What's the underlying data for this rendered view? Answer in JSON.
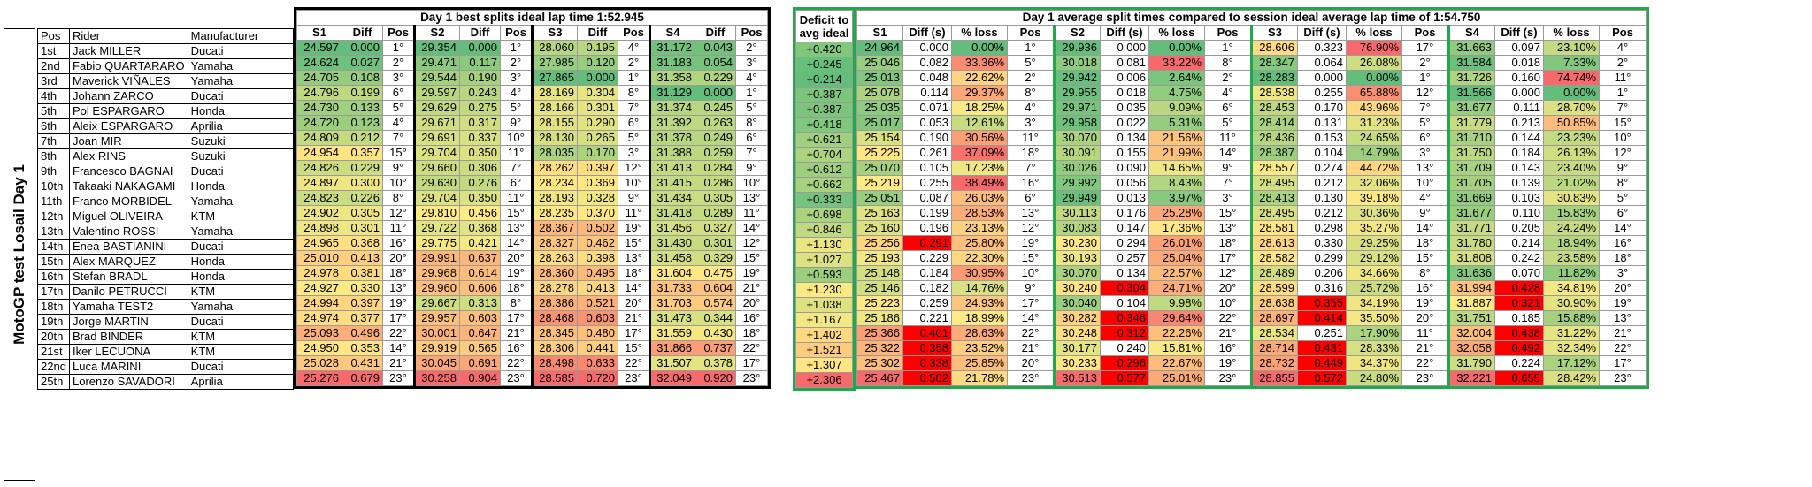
{
  "vertical_title": "MotoGP test Losail Day 1",
  "riders_header": {
    "pos": "Pos",
    "rider": "Rider",
    "manufacturer": "Manufacturer"
  },
  "riders": [
    {
      "pos": "1st",
      "name": "Jack MILLER",
      "mfr": "Ducati"
    },
    {
      "pos": "2nd",
      "name": "Fabio QUARTARARO",
      "mfr": "Yamaha"
    },
    {
      "pos": "3rd",
      "name": "Maverick VIÑALES",
      "mfr": "Yamaha"
    },
    {
      "pos": "4th",
      "name": "Johann ZARCO",
      "mfr": "Ducati"
    },
    {
      "pos": "5th",
      "name": "Pol ESPARGARO",
      "mfr": "Honda"
    },
    {
      "pos": "6th",
      "name": "Aleix ESPARGARO",
      "mfr": "Aprilia"
    },
    {
      "pos": "7th",
      "name": "Joan MIR",
      "mfr": "Suzuki"
    },
    {
      "pos": "8th",
      "name": "Alex RINS",
      "mfr": "Suzuki"
    },
    {
      "pos": "9th",
      "name": "Francesco BAGNAI",
      "mfr": "Ducati"
    },
    {
      "pos": "10th",
      "name": "Takaaki NAKAGAMI",
      "mfr": "Honda"
    },
    {
      "pos": "11th",
      "name": "Franco MORBIDEL",
      "mfr": "Yamaha"
    },
    {
      "pos": "12th",
      "name": "Miguel OLIVEIRA",
      "mfr": "KTM"
    },
    {
      "pos": "13th",
      "name": "Valentino ROSSI",
      "mfr": "Yamaha"
    },
    {
      "pos": "14th",
      "name": "Enea BASTIANINI",
      "mfr": "Ducati"
    },
    {
      "pos": "15th",
      "name": "Alex MARQUEZ",
      "mfr": "Honda"
    },
    {
      "pos": "16th",
      "name": "Stefan BRADL",
      "mfr": "Honda"
    },
    {
      "pos": "17th",
      "name": "Danilo PETRUCCI",
      "mfr": "KTM"
    },
    {
      "pos": "18th",
      "name": "Yamaha TEST2",
      "mfr": "Yamaha"
    },
    {
      "pos": "19th",
      "name": "Jorge MARTIN",
      "mfr": "Ducati"
    },
    {
      "pos": "20th",
      "name": "Brad BINDER",
      "mfr": "KTM"
    },
    {
      "pos": "21st",
      "name": "Iker LECUONA",
      "mfr": "KTM"
    },
    {
      "pos": "22nd",
      "name": "Luca MARINI",
      "mfr": "Ducati"
    },
    {
      "pos": "25th",
      "name": "Lorenzo SAVADORI",
      "mfr": "Aprilia"
    }
  ],
  "best_splits": {
    "title": "Day 1 best splits ideal lap time   1:52.945",
    "headers": [
      "S1",
      "Diff",
      "Pos",
      "S2",
      "Diff",
      "Pos",
      "S3",
      "Diff",
      "Pos",
      "S4",
      "Diff",
      "Pos"
    ],
    "rows": [
      [
        "24.597",
        "0.000",
        "1°",
        "29.354",
        "0.000",
        "1°",
        "28.060",
        "0.195",
        "4°",
        "31.172",
        "0.043",
        "2°"
      ],
      [
        "24.624",
        "0.027",
        "2°",
        "29.471",
        "0.117",
        "2°",
        "27.985",
        "0.120",
        "2°",
        "31.183",
        "0.054",
        "3°"
      ],
      [
        "24.705",
        "0.108",
        "3°",
        "29.544",
        "0.190",
        "3°",
        "27.865",
        "0.000",
        "1°",
        "31.358",
        "0.229",
        "4°"
      ],
      [
        "24.796",
        "0.199",
        "6°",
        "29.597",
        "0.243",
        "4°",
        "28.169",
        "0.304",
        "8°",
        "31.129",
        "0.000",
        "1°"
      ],
      [
        "24.730",
        "0.133",
        "5°",
        "29.629",
        "0.275",
        "5°",
        "28.166",
        "0.301",
        "7°",
        "31.374",
        "0.245",
        "5°"
      ],
      [
        "24.720",
        "0.123",
        "4°",
        "29.671",
        "0.317",
        "9°",
        "28.155",
        "0.290",
        "6°",
        "31.392",
        "0.263",
        "8°"
      ],
      [
        "24.809",
        "0.212",
        "7°",
        "29.691",
        "0.337",
        "10°",
        "28.130",
        "0.265",
        "5°",
        "31.378",
        "0.249",
        "6°"
      ],
      [
        "24.954",
        "0.357",
        "15°",
        "29.704",
        "0.350",
        "11°",
        "28.035",
        "0.170",
        "3°",
        "31.388",
        "0.259",
        "7°"
      ],
      [
        "24.826",
        "0.229",
        "9°",
        "29.660",
        "0.306",
        "7°",
        "28.262",
        "0.397",
        "12°",
        "31.413",
        "0.284",
        "9°"
      ],
      [
        "24.897",
        "0.300",
        "10°",
        "29.630",
        "0.276",
        "6°",
        "28.234",
        "0.369",
        "10°",
        "31.415",
        "0.286",
        "10°"
      ],
      [
        "24.823",
        "0.226",
        "8°",
        "29.704",
        "0.350",
        "11°",
        "28.193",
        "0.328",
        "9°",
        "31.434",
        "0.305",
        "13°"
      ],
      [
        "24.902",
        "0.305",
        "12°",
        "29.810",
        "0.456",
        "15°",
        "28.235",
        "0.370",
        "11°",
        "31.418",
        "0.289",
        "11°"
      ],
      [
        "24.898",
        "0.301",
        "11°",
        "29.722",
        "0.368",
        "13°",
        "28.367",
        "0.502",
        "19°",
        "31.456",
        "0.327",
        "14°"
      ],
      [
        "24.965",
        "0.368",
        "16°",
        "29.775",
        "0.421",
        "14°",
        "28.327",
        "0.462",
        "15°",
        "31.430",
        "0.301",
        "12°"
      ],
      [
        "25.010",
        "0.413",
        "20°",
        "29.991",
        "0.637",
        "20°",
        "28.263",
        "0.398",
        "13°",
        "31.458",
        "0.329",
        "15°"
      ],
      [
        "24.978",
        "0.381",
        "18°",
        "29.968",
        "0.614",
        "19°",
        "28.360",
        "0.495",
        "18°",
        "31.604",
        "0.475",
        "19°"
      ],
      [
        "24.927",
        "0.330",
        "13°",
        "29.960",
        "0.606",
        "18°",
        "28.278",
        "0.413",
        "14°",
        "31.733",
        "0.604",
        "21°"
      ],
      [
        "24.994",
        "0.397",
        "19°",
        "29.667",
        "0.313",
        "8°",
        "28.386",
        "0.521",
        "20°",
        "31.703",
        "0.574",
        "20°"
      ],
      [
        "24.974",
        "0.377",
        "17°",
        "29.957",
        "0.603",
        "17°",
        "28.468",
        "0.603",
        "21°",
        "31.473",
        "0.344",
        "16°"
      ],
      [
        "25.093",
        "0.496",
        "22°",
        "30.001",
        "0.647",
        "21°",
        "28.345",
        "0.480",
        "17°",
        "31.559",
        "0.430",
        "18°"
      ],
      [
        "24.950",
        "0.353",
        "14°",
        "29.919",
        "0.565",
        "16°",
        "28.306",
        "0.441",
        "15°",
        "31.866",
        "0.737",
        "22°"
      ],
      [
        "25.028",
        "0.431",
        "21°",
        "30.045",
        "0.691",
        "22°",
        "28.498",
        "0.633",
        "22°",
        "31.507",
        "0.378",
        "17°"
      ],
      [
        "25.276",
        "0.679",
        "23°",
        "30.258",
        "0.904",
        "23°",
        "28.585",
        "0.720",
        "23°",
        "32.049",
        "0.920",
        "23°"
      ]
    ]
  },
  "deficit": {
    "header": "Deficit to avg ideal",
    "values": [
      "+0.420",
      "+0.245",
      "+0.214",
      "+0.387",
      "+0.387",
      "+0.418",
      "+0.621",
      "+0.704",
      "+0.612",
      "+0.662",
      "+0.333",
      "+0.698",
      "+0.846",
      "+1.130",
      "+1.027",
      "+0.593",
      "+1.230",
      "+1.038",
      "+1.167",
      "+1.402",
      "+1.521",
      "+1.307",
      "+2.306"
    ]
  },
  "avg_splits": {
    "title": "Day 1 average split times compared to session ideal average lap time of   1:54.750",
    "headers": [
      "S1",
      "Diff (s)",
      "% loss",
      "Pos",
      "S2",
      "Diff (s)",
      "% loss",
      "Pos",
      "S3",
      "Diff (s)",
      "% loss",
      "Pos",
      "S4",
      "Diff (s)",
      "% loss",
      "Pos"
    ],
    "rows": [
      [
        "24.964",
        "0.000",
        "0.00%",
        "1°",
        "29.936",
        "0.000",
        "0.00%",
        "1°",
        "28.606",
        "0.323",
        "76.90%",
        "17°",
        "31.663",
        "0.097",
        "23.10%",
        "4°"
      ],
      [
        "25.046",
        "0.082",
        "33.36%",
        "5°",
        "30.018",
        "0.081",
        "33.22%",
        "8°",
        "28.347",
        "0.064",
        "26.08%",
        "2°",
        "31.584",
        "0.018",
        "7.33%",
        "2°"
      ],
      [
        "25.013",
        "0.048",
        "22.62%",
        "2°",
        "29.942",
        "0.006",
        "2.64%",
        "2°",
        "28.283",
        "0.000",
        "0.00%",
        "1°",
        "31.726",
        "0.160",
        "74.74%",
        "11°"
      ],
      [
        "25.078",
        "0.114",
        "29.37%",
        "8°",
        "29.955",
        "0.018",
        "4.75%",
        "4°",
        "28.538",
        "0.255",
        "65.88%",
        "12°",
        "31.566",
        "0.000",
        "0.00%",
        "1°"
      ],
      [
        "25.035",
        "0.071",
        "18.25%",
        "4°",
        "29.971",
        "0.035",
        "9.09%",
        "6°",
        "28.453",
        "0.170",
        "43.96%",
        "7°",
        "31.677",
        "0.111",
        "28.70%",
        "7°"
      ],
      [
        "25.017",
        "0.053",
        "12.61%",
        "3°",
        "29.958",
        "0.022",
        "5.31%",
        "5°",
        "28.414",
        "0.131",
        "31.23%",
        "5°",
        "31.779",
        "0.213",
        "50.85%",
        "15°"
      ],
      [
        "25.154",
        "0.190",
        "30.56%",
        "11°",
        "30.070",
        "0.134",
        "21.56%",
        "11°",
        "28.436",
        "0.153",
        "24.65%",
        "6°",
        "31.710",
        "0.144",
        "23.23%",
        "10°"
      ],
      [
        "25.225",
        "0.261",
        "37.09%",
        "18°",
        "30.091",
        "0.155",
        "21.99%",
        "14°",
        "28.387",
        "0.104",
        "14.79%",
        "3°",
        "31.750",
        "0.184",
        "26.13%",
        "12°"
      ],
      [
        "25.070",
        "0.105",
        "17.23%",
        "7°",
        "30.026",
        "0.090",
        "14.65%",
        "9°",
        "28.557",
        "0.274",
        "44.72%",
        "13°",
        "31.709",
        "0.143",
        "23.40%",
        "9°"
      ],
      [
        "25.219",
        "0.255",
        "38.49%",
        "16°",
        "29.992",
        "0.056",
        "8.43%",
        "7°",
        "28.495",
        "0.212",
        "32.06%",
        "10°",
        "31.705",
        "0.139",
        "21.02%",
        "8°"
      ],
      [
        "25.051",
        "0.087",
        "26.03%",
        "6°",
        "29.949",
        "0.013",
        "3.97%",
        "3°",
        "28.413",
        "0.130",
        "39.18%",
        "4°",
        "31.669",
        "0.103",
        "30.83%",
        "5°"
      ],
      [
        "25.163",
        "0.199",
        "28.53%",
        "13°",
        "30.113",
        "0.176",
        "25.28%",
        "15°",
        "28.495",
        "0.212",
        "30.36%",
        "9°",
        "31.677",
        "0.110",
        "15.83%",
        "6°"
      ],
      [
        "25.160",
        "0.196",
        "23.13%",
        "12°",
        "30.083",
        "0.147",
        "17.36%",
        "13°",
        "28.581",
        "0.298",
        "35.27%",
        "14°",
        "31.771",
        "0.205",
        "24.24%",
        "14°"
      ],
      [
        "25.256",
        "0.291",
        "25.80%",
        "19°",
        "30.230",
        "0.294",
        "26.01%",
        "18°",
        "28.613",
        "0.330",
        "29.25%",
        "18°",
        "31.780",
        "0.214",
        "18.94%",
        "16°"
      ],
      [
        "25.193",
        "0.229",
        "22.30%",
        "15°",
        "30.193",
        "0.257",
        "25.04%",
        "17°",
        "28.582",
        "0.299",
        "29.12%",
        "15°",
        "31.808",
        "0.242",
        "23.58%",
        "18°"
      ],
      [
        "25.148",
        "0.184",
        "30.95%",
        "10°",
        "30.070",
        "0.134",
        "22.57%",
        "12°",
        "28.489",
        "0.206",
        "34.66%",
        "8°",
        "31.636",
        "0.070",
        "11.82%",
        "3°"
      ],
      [
        "25.146",
        "0.182",
        "14.76%",
        "9°",
        "30.240",
        "0.304",
        "24.71%",
        "20°",
        "28.599",
        "0.316",
        "25.72%",
        "16°",
        "31.994",
        "0.428",
        "34.81%",
        "20°"
      ],
      [
        "25.223",
        "0.259",
        "24.93%",
        "17°",
        "30.040",
        "0.104",
        "9.98%",
        "10°",
        "28.638",
        "0.355",
        "34.19%",
        "19°",
        "31.887",
        "0.321",
        "30.90%",
        "19°"
      ],
      [
        "25.186",
        "0.221",
        "18.99%",
        "14°",
        "30.282",
        "0.346",
        "29.64%",
        "22°",
        "28.697",
        "0.414",
        "35.50%",
        "20°",
        "31.751",
        "0.185",
        "15.88%",
        "13°"
      ],
      [
        "25.366",
        "0.401",
        "28.63%",
        "22°",
        "30.248",
        "0.312",
        "22.26%",
        "21°",
        "28.534",
        "0.251",
        "17.90%",
        "11°",
        "32.004",
        "0.438",
        "31.22%",
        "21°"
      ],
      [
        "25.322",
        "0.358",
        "23.52%",
        "21°",
        "30.177",
        "0.240",
        "15.81%",
        "16°",
        "28.714",
        "0.431",
        "28.33%",
        "21°",
        "32.058",
        "0.492",
        "32.34%",
        "22°"
      ],
      [
        "25.302",
        "0.338",
        "25.85%",
        "20°",
        "30.233",
        "0.296",
        "22.67%",
        "19°",
        "28.732",
        "0.449",
        "34.37%",
        "22°",
        "31.790",
        "0.224",
        "17.12%",
        "17°"
      ],
      [
        "25.467",
        "0.502",
        "21.78%",
        "23°",
        "30.513",
        "0.577",
        "25.01%",
        "23°",
        "28.855",
        "0.572",
        "24.80%",
        "23°",
        "32.221",
        "0.655",
        "28.42%",
        "23°"
      ]
    ]
  }
}
